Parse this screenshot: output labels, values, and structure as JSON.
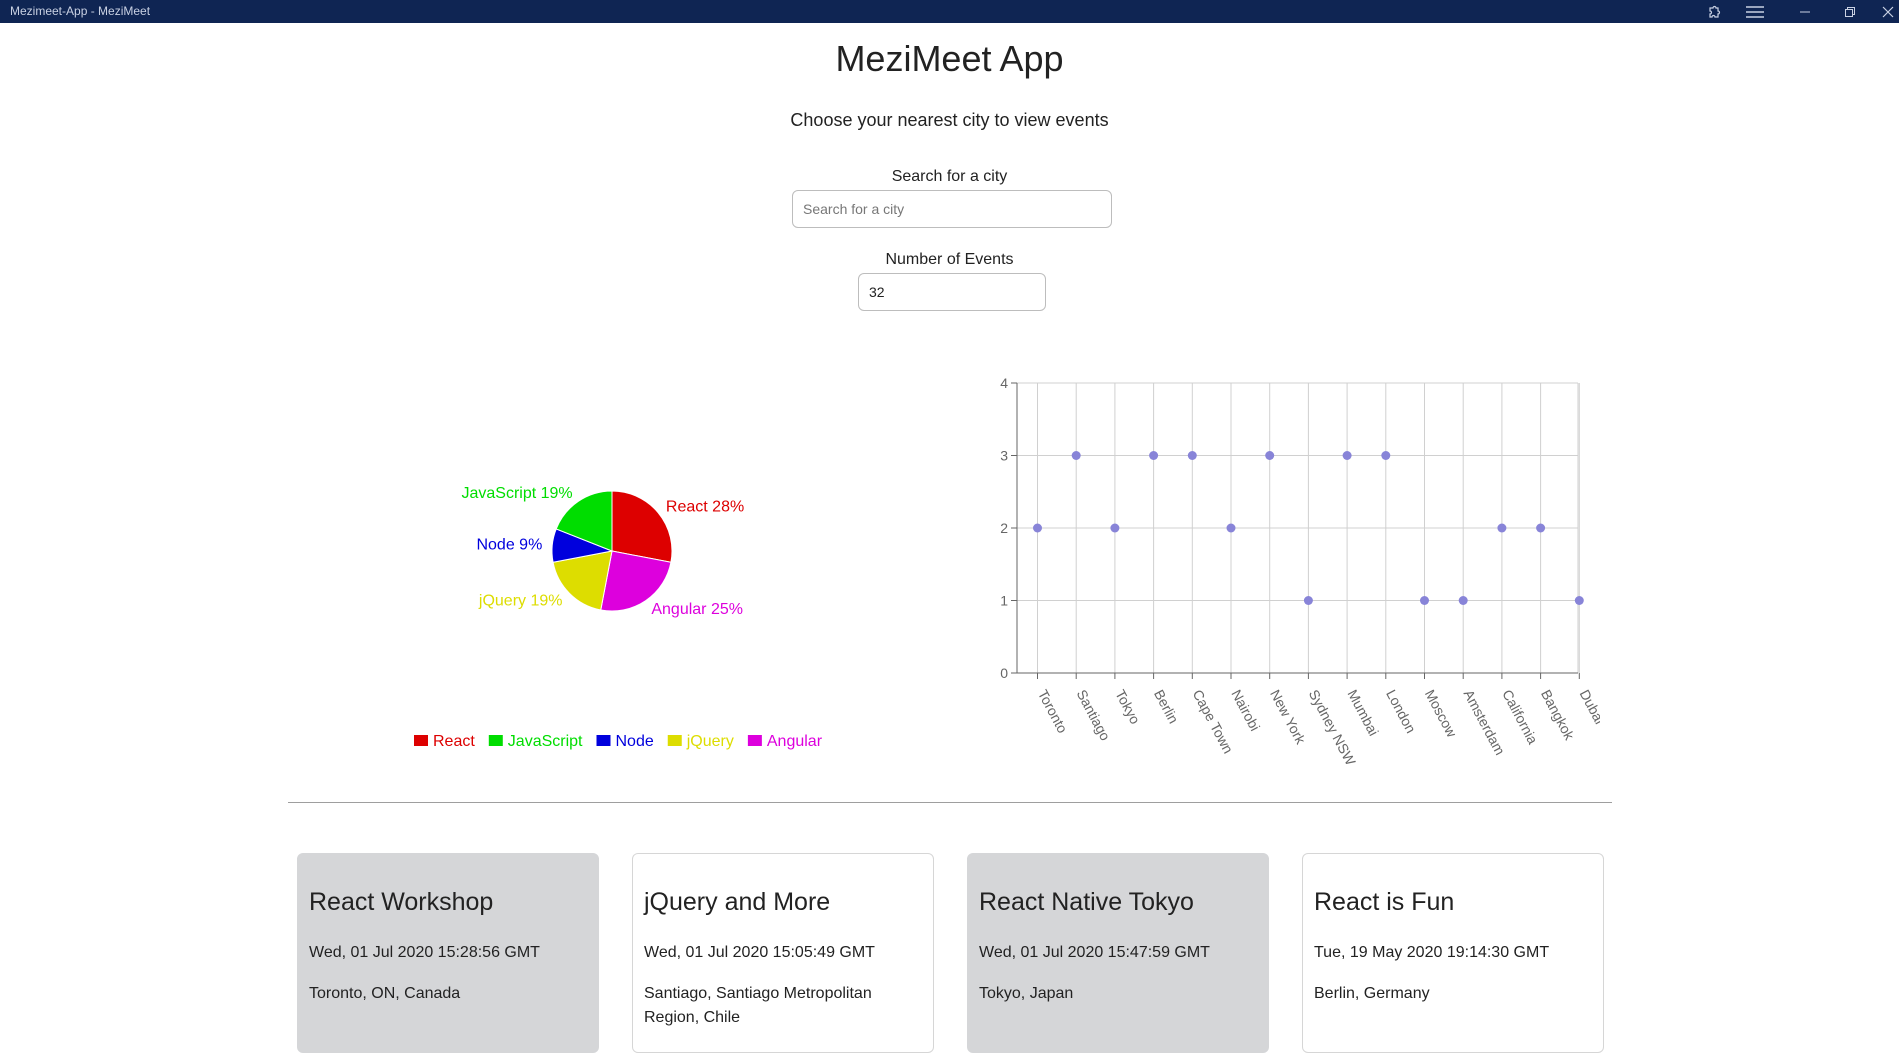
{
  "window": {
    "title": "Mezimeet-App - MeziMeet"
  },
  "app": {
    "title": "MeziMeet App",
    "subtitle": "Choose your nearest city to view events"
  },
  "search": {
    "label": "Search for a city",
    "placeholder": "Search for a city",
    "value": ""
  },
  "events_count": {
    "label": "Number of Events",
    "value": "32"
  },
  "pie_chart": {
    "type": "pie",
    "slices": [
      {
        "name": "React",
        "percent": 28,
        "label": "React 28%",
        "color": "#dd0000"
      },
      {
        "name": "Angular",
        "percent": 25,
        "label": "Angular 25%",
        "color": "#dd00dd"
      },
      {
        "name": "jQuery",
        "percent": 19,
        "label": "jQuery 19%",
        "color": "#dddd00"
      },
      {
        "name": "Node",
        "percent": 9,
        "label": "Node 9%",
        "color": "#0000dd"
      },
      {
        "name": "JavaScript",
        "percent": 19,
        "label": "JavaScript 19%",
        "color": "#00dd00"
      }
    ],
    "legend": [
      "React",
      "JavaScript",
      "Node",
      "jQuery",
      "Angular"
    ],
    "legend_position": "bottom"
  },
  "chart_data": {
    "type": "scatter",
    "categories": [
      "Toronto",
      "Santiago",
      "Tokyo",
      "Berlin",
      "Cape Town",
      "Nairobi",
      "New York",
      "Sydney NSW",
      "Mumbai",
      "London",
      "Moscow",
      "Amsterdam",
      "California",
      "Bangkok",
      "Dubai"
    ],
    "values": [
      2,
      3,
      2,
      3,
      3,
      2,
      3,
      1,
      3,
      3,
      1,
      1,
      2,
      2,
      1
    ],
    "ylim": [
      0,
      4
    ],
    "yticks": [
      "0",
      "1",
      "2",
      "3",
      "4"
    ],
    "grid": true,
    "point_color": "#8884d8"
  },
  "events": [
    {
      "title": "React Workshop",
      "date": "Wed, 01 Jul 2020 15:28:56 GMT",
      "location": "Toronto, ON, Canada",
      "style": "grey"
    },
    {
      "title": "jQuery and More",
      "date": "Wed, 01 Jul 2020 15:05:49 GMT",
      "location": "Santiago, Santiago Metropolitan Region, Chile",
      "style": "white"
    },
    {
      "title": "React Native Tokyo",
      "date": "Wed, 01 Jul 2020 15:47:59 GMT",
      "location": "Tokyo, Japan",
      "style": "grey"
    },
    {
      "title": "React is Fun",
      "date": "Tue, 19 May 2020 19:14:30 GMT",
      "location": "Berlin, Germany",
      "style": "white"
    }
  ]
}
